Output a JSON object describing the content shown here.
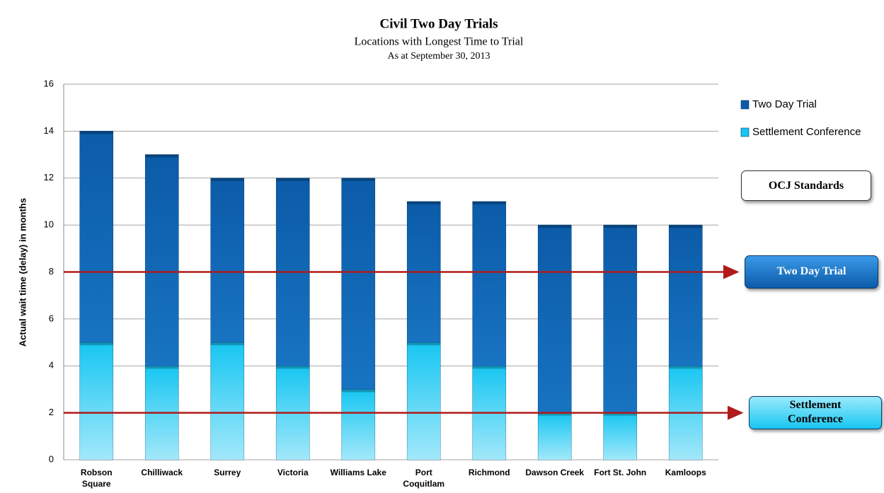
{
  "chart_data": {
    "type": "stacked_bar",
    "title": "Civil Two Day Trials",
    "subtitle": "Locations with Longest Time to Trial",
    "date_note": "As at September 30, 2013",
    "y_label": "Actual wait time (delay) in months",
    "categories": [
      "Robson\nSquare",
      "Chilliwack",
      "Surrey",
      "Victoria",
      "Williams Lake",
      "Port\nCoquitlam",
      "Richmond",
      "Dawson Creek",
      "Fort St. John",
      "Kamloops"
    ],
    "series": [
      {
        "name": "Settlement Conference",
        "color": "#17c6f2",
        "values": [
          5,
          4,
          5,
          4,
          3,
          5,
          4,
          2,
          2,
          4
        ]
      },
      {
        "name": "Two Day Trial",
        "color": "#0b5ba8",
        "values": [
          9,
          9,
          7,
          8,
          9,
          6,
          7,
          8,
          8,
          6
        ]
      }
    ],
    "ylim": [
      0,
      16
    ],
    "yticks": [
      0,
      2,
      4,
      6,
      8,
      10,
      12,
      14,
      16
    ],
    "grid": true,
    "legend": "right",
    "standards": {
      "title": "OCJ Standards",
      "color": "#b01a1a",
      "lines": [
        {
          "label": "Two Day Trial",
          "value": 8
        },
        {
          "label": "Settlement\nConference",
          "value": 2
        }
      ]
    }
  }
}
